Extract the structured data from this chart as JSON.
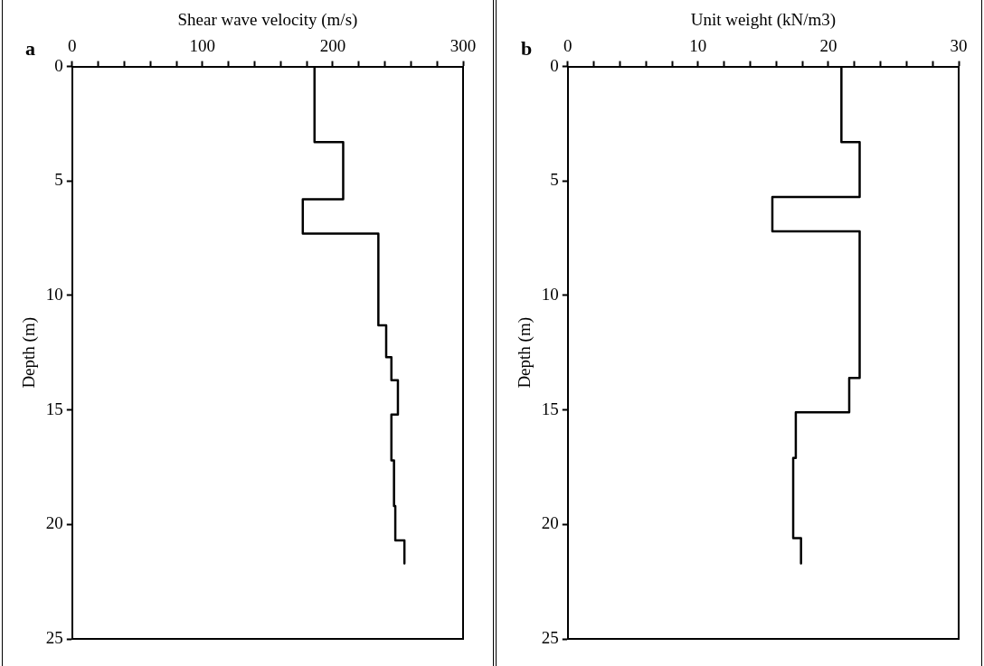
{
  "chart_data": [
    {
      "type": "line",
      "annotations": [
        "a"
      ],
      "xlabel": "Shear wave velocity (m/s)",
      "ylabel": "Depth (m)",
      "xlim": [
        0,
        300
      ],
      "xticks": [
        0,
        {
          "value": 20,
          "label": null
        },
        {
          "value": 40,
          "label": null
        },
        {
          "value": 60,
          "label": null
        },
        {
          "value": 80,
          "label": null
        },
        100,
        {
          "value": 120,
          "label": null
        },
        {
          "value": 140,
          "label": null
        },
        {
          "value": 160,
          "label": null
        },
        {
          "value": 180,
          "label": null
        },
        200,
        {
          "value": 220,
          "label": null
        },
        {
          "value": 240,
          "label": null
        },
        {
          "value": 260,
          "label": null
        },
        {
          "value": 280,
          "label": null
        },
        300
      ],
      "ylim": [
        25,
        0
      ],
      "yticks": [
        0,
        5,
        10,
        15,
        20,
        25
      ],
      "grid": false,
      "legend": false,
      "marker": "none",
      "line_style": "solid",
      "series": [
        {
          "color": "#000000",
          "x": [
            186,
            186,
            208,
            208,
            177,
            177,
            235,
            235,
            241,
            241,
            245,
            245,
            250,
            250,
            245,
            245,
            247,
            247,
            248,
            248,
            255,
            255
          ],
          "values": [
            0,
            3.3,
            3.3,
            5.8,
            5.8,
            7.3,
            7.3,
            11.3,
            11.3,
            12.7,
            12.7,
            13.7,
            13.7,
            15.2,
            15.2,
            17.2,
            17.2,
            19.2,
            19.2,
            20.7,
            20.7,
            21.7
          ]
        }
      ]
    },
    {
      "type": "line",
      "annotations": [
        "b"
      ],
      "xlabel": "Unit weight (kN/m3)",
      "ylabel": "Depth (m)",
      "xlim": [
        0,
        30
      ],
      "xticks": [
        0,
        {
          "value": 2,
          "label": null
        },
        {
          "value": 4,
          "label": null
        },
        {
          "value": 6,
          "label": null
        },
        {
          "value": 8,
          "label": null
        },
        10,
        {
          "value": 12,
          "label": null
        },
        {
          "value": 14,
          "label": null
        },
        {
          "value": 16,
          "label": null
        },
        {
          "value": 18,
          "label": null
        },
        20,
        {
          "value": 22,
          "label": null
        },
        {
          "value": 24,
          "label": null
        },
        {
          "value": 26,
          "label": null
        },
        {
          "value": 28,
          "label": null
        },
        30
      ],
      "ylim": [
        25,
        0
      ],
      "yticks": [
        0,
        5,
        10,
        15,
        20,
        25
      ],
      "grid": false,
      "legend": false,
      "marker": "none",
      "line_style": "solid",
      "series": [
        {
          "color": "#000000",
          "x": [
            21,
            21,
            22.4,
            22.4,
            15.7,
            15.7,
            22.4,
            22.4,
            21.6,
            21.6,
            17.5,
            17.5,
            17.3,
            17.3,
            17.9,
            17.9
          ],
          "values": [
            0,
            3.3,
            3.3,
            5.7,
            5.7,
            7.2,
            7.2,
            13.6,
            13.6,
            15.1,
            15.1,
            17.1,
            17.1,
            20.6,
            20.6,
            21.7
          ]
        }
      ]
    }
  ]
}
